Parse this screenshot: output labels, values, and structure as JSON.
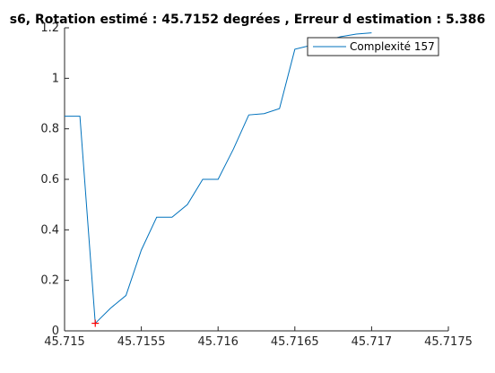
{
  "chart_data": {
    "type": "line",
    "title": "s6, Rotation estimé : 45.7152 degrées , Erreur d estimation : 5.386",
    "xlabel": "",
    "ylabel": "",
    "xlim": [
      45.715,
      45.7175
    ],
    "ylim": [
      0,
      1.2
    ],
    "xticks": [
      45.715,
      45.7155,
      45.716,
      45.7165,
      45.717,
      45.7175
    ],
    "xtick_labels": [
      "45.715",
      "45.7155",
      "45.716",
      "45.7165",
      "45.717",
      "45.7175"
    ],
    "yticks": [
      0,
      0.2,
      0.4,
      0.6,
      0.8,
      1,
      1.2
    ],
    "ytick_labels": [
      "0",
      "0.2",
      "0.4",
      "0.6",
      "0.8",
      "1",
      "1.2"
    ],
    "grid": false,
    "legend_position": "top-right",
    "series": [
      {
        "name": "Complexité 157",
        "color": "#0072bd",
        "x": [
          45.715,
          45.7151,
          45.7152,
          45.7153,
          45.7154,
          45.7155,
          45.7156,
          45.7157,
          45.7158,
          45.7159,
          45.716,
          45.7161,
          45.7162,
          45.7163,
          45.7164,
          45.7165,
          45.7166,
          45.7167,
          45.7168,
          45.7169,
          45.717
        ],
        "values": [
          0.85,
          0.85,
          0.03,
          0.09,
          0.14,
          0.32,
          0.45,
          0.45,
          0.5,
          0.6,
          0.6,
          0.72,
          0.855,
          0.86,
          0.88,
          1.115,
          1.13,
          1.15,
          1.165,
          1.175,
          1.18
        ]
      }
    ],
    "marker": {
      "x": 45.7152,
      "y": 0.03,
      "symbol": "+",
      "color": "#ff0000"
    }
  }
}
